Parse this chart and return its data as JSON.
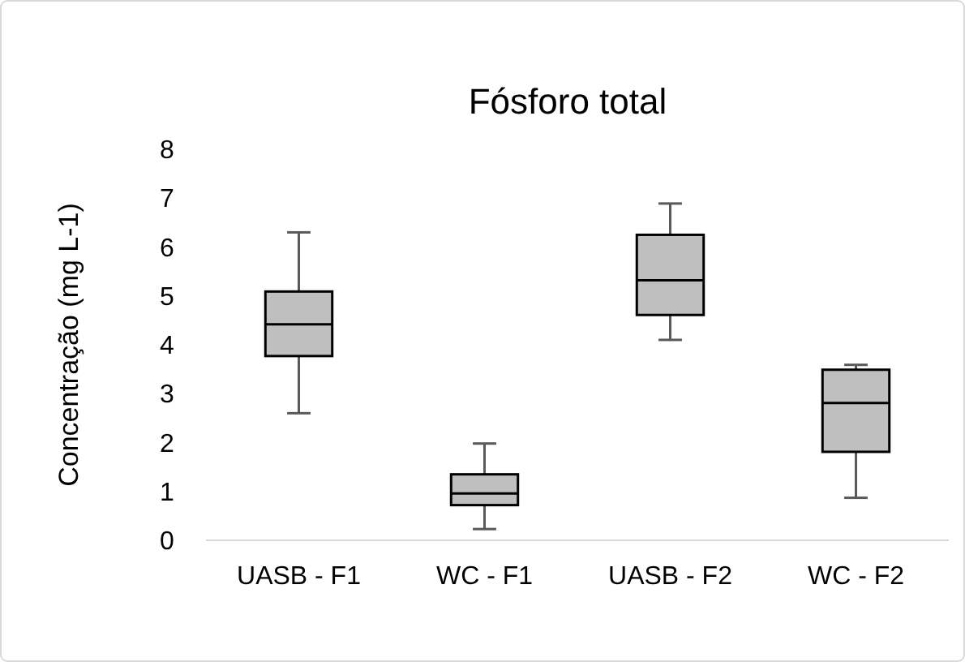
{
  "chart_data": {
    "type": "box",
    "title": "Fósforo total",
    "ylabel": "Concentração (mg L-1)",
    "categories": [
      "UASB - F1",
      "WC - F1",
      "UASB - F2",
      "WC - F2"
    ],
    "color": "#bfbfbf",
    "ylim": [
      0,
      8
    ],
    "yticks": [
      0,
      1,
      2,
      3,
      4,
      5,
      6,
      7,
      8
    ],
    "grid": false,
    "boxes": [
      {
        "low": 2.6,
        "q1": 3.77,
        "median": 4.42,
        "q3": 5.09,
        "high": 6.3
      },
      {
        "low": 0.23,
        "q1": 0.72,
        "median": 0.96,
        "q3": 1.35,
        "high": 1.98
      },
      {
        "low": 4.1,
        "q1": 4.61,
        "median": 5.32,
        "q3": 6.25,
        "high": 6.89
      },
      {
        "low": 0.87,
        "q1": 1.81,
        "median": 2.81,
        "q3": 3.49,
        "high": 3.59
      }
    ]
  }
}
